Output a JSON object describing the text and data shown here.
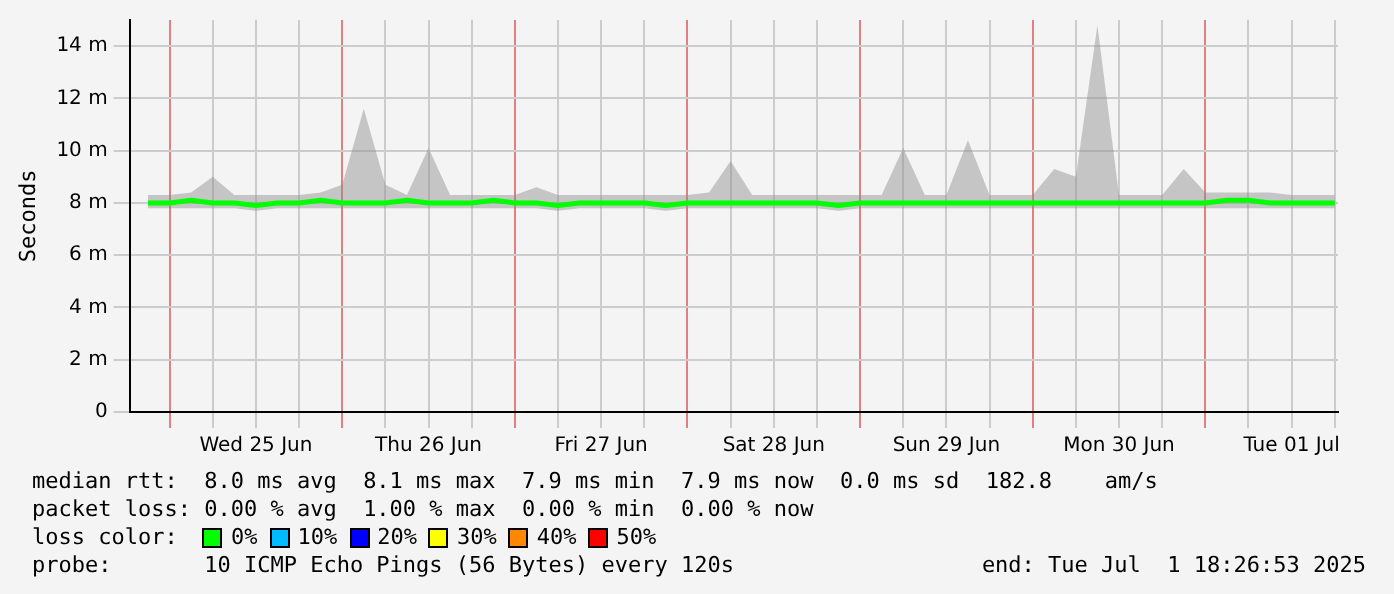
{
  "chart_data": {
    "type": "line",
    "ylabel": "Seconds",
    "x": [
      "2025-06-24T21:00",
      "2025-06-25T00:00",
      "2025-06-25T03:00",
      "2025-06-25T06:00",
      "2025-06-25T09:00",
      "2025-06-25T12:00",
      "2025-06-25T15:00",
      "2025-06-25T18:00",
      "2025-06-25T21:00",
      "2025-06-26T00:00",
      "2025-06-26T03:00",
      "2025-06-26T06:00",
      "2025-06-26T09:00",
      "2025-06-26T12:00",
      "2025-06-26T15:00",
      "2025-06-26T18:00",
      "2025-06-26T21:00",
      "2025-06-27T00:00",
      "2025-06-27T03:00",
      "2025-06-27T06:00",
      "2025-06-27T09:00",
      "2025-06-27T12:00",
      "2025-06-27T15:00",
      "2025-06-27T18:00",
      "2025-06-27T21:00",
      "2025-06-28T00:00",
      "2025-06-28T03:00",
      "2025-06-28T06:00",
      "2025-06-28T09:00",
      "2025-06-28T12:00",
      "2025-06-28T15:00",
      "2025-06-28T18:00",
      "2025-06-28T21:00",
      "2025-06-29T00:00",
      "2025-06-29T03:00",
      "2025-06-29T06:00",
      "2025-06-29T09:00",
      "2025-06-29T12:00",
      "2025-06-29T15:00",
      "2025-06-29T18:00",
      "2025-06-29T21:00",
      "2025-06-30T00:00",
      "2025-06-30T03:00",
      "2025-06-30T06:00",
      "2025-06-30T09:00",
      "2025-06-30T12:00",
      "2025-06-30T15:00",
      "2025-06-30T18:00",
      "2025-06-30T21:00",
      "2025-07-01T00:00",
      "2025-07-01T03:00",
      "2025-07-01T06:00",
      "2025-07-01T09:00",
      "2025-07-01T12:00",
      "2025-07-01T15:00",
      "2025-07-01T18:00"
    ],
    "series": [
      {
        "name": "0%",
        "color": "#00ff00",
        "values": [
          8.0,
          8.0,
          8.1,
          8.0,
          8.0,
          7.9,
          8.0,
          8.0,
          8.1,
          8.0,
          8.0,
          8.0,
          8.1,
          8.0,
          8.0,
          8.0,
          8.1,
          8.0,
          8.0,
          7.9,
          8.0,
          8.0,
          8.0,
          8.0,
          7.9,
          8.0,
          8.0,
          8.0,
          8.0,
          8.0,
          8.0,
          8.0,
          7.9,
          8.0,
          8.0,
          8.0,
          8.0,
          8.0,
          8.0,
          8.0,
          8.0,
          8.0,
          8.0,
          8.0,
          8.0,
          8.0,
          8.0,
          8.0,
          8.0,
          8.0,
          8.1,
          8.1,
          8.0,
          8.0,
          8.0,
          8.0
        ],
        "lower": [
          7.8,
          7.8,
          7.8,
          7.8,
          7.8,
          7.7,
          7.8,
          7.8,
          7.8,
          7.8,
          7.8,
          7.8,
          7.8,
          7.8,
          7.8,
          7.8,
          7.8,
          7.8,
          7.8,
          7.7,
          7.8,
          7.8,
          7.8,
          7.8,
          7.7,
          7.8,
          7.8,
          7.8,
          7.8,
          7.8,
          7.8,
          7.8,
          7.7,
          7.8,
          7.8,
          7.8,
          7.8,
          7.8,
          7.8,
          7.8,
          7.8,
          7.8,
          7.8,
          7.8,
          7.8,
          7.8,
          7.8,
          7.8,
          7.8,
          7.8,
          7.8,
          7.8,
          7.8,
          7.8,
          7.8,
          7.8
        ],
        "upper": [
          8.3,
          8.3,
          8.4,
          9.0,
          8.3,
          8.3,
          8.3,
          8.3,
          8.4,
          8.7,
          11.6,
          8.7,
          8.3,
          10.1,
          8.3,
          8.3,
          8.3,
          8.3,
          8.6,
          8.3,
          8.3,
          8.3,
          8.3,
          8.3,
          8.3,
          8.3,
          8.4,
          9.6,
          8.3,
          8.3,
          8.3,
          8.3,
          8.3,
          8.3,
          8.3,
          10.1,
          8.3,
          8.3,
          10.4,
          8.3,
          8.3,
          8.3,
          9.3,
          9.0,
          14.8,
          8.3,
          8.3,
          8.3,
          9.3,
          8.4,
          8.4,
          8.4,
          8.4,
          8.3,
          8.3,
          8.3
        ]
      },
      {
        "name": "10%",
        "color": "#00bbff",
        "values": [
          null,
          null,
          null,
          null,
          null,
          null,
          null,
          null,
          null,
          null,
          null,
          null,
          null,
          null,
          null,
          null,
          null,
          null,
          null,
          null,
          null,
          null,
          null,
          null,
          null,
          null,
          null,
          null,
          null,
          null,
          null,
          null,
          null,
          null,
          null,
          null,
          null,
          null,
          null,
          null,
          null,
          null,
          null,
          null,
          null,
          null,
          null,
          null,
          null,
          null,
          null,
          null,
          null,
          null,
          null,
          null
        ]
      },
      {
        "name": "20%",
        "color": "#0000ff",
        "values": [
          null,
          null,
          null,
          null,
          null,
          null,
          null,
          null,
          null,
          null,
          null,
          null,
          null,
          null,
          null,
          null,
          null,
          null,
          null,
          null,
          null,
          null,
          null,
          null,
          null,
          null,
          null,
          null,
          null,
          null,
          null,
          null,
          null,
          null,
          null,
          null,
          null,
          null,
          null,
          null,
          null,
          null,
          null,
          null,
          null,
          null,
          null,
          null,
          null,
          null,
          null,
          null,
          null,
          null,
          null,
          null
        ]
      },
      {
        "name": "30%",
        "color": "#ffff00",
        "values": [
          null,
          null,
          null,
          null,
          null,
          null,
          null,
          null,
          null,
          null,
          null,
          null,
          null,
          null,
          null,
          null,
          null,
          null,
          null,
          null,
          null,
          null,
          null,
          null,
          null,
          null,
          null,
          null,
          null,
          null,
          null,
          null,
          null,
          null,
          null,
          null,
          null,
          null,
          null,
          null,
          null,
          null,
          null,
          null,
          null,
          null,
          null,
          null,
          null,
          null,
          null,
          null,
          null,
          null,
          null,
          null
        ]
      },
      {
        "name": "40%",
        "color": "#ff8800",
        "values": [
          null,
          null,
          null,
          null,
          null,
          null,
          null,
          null,
          null,
          null,
          null,
          null,
          null,
          null,
          null,
          null,
          null,
          null,
          null,
          null,
          null,
          null,
          null,
          null,
          null,
          null,
          null,
          null,
          null,
          null,
          null,
          null,
          null,
          null,
          null,
          null,
          null,
          null,
          null,
          null,
          null,
          null,
          null,
          null,
          null,
          null,
          null,
          null,
          null,
          null,
          null,
          null,
          null,
          null,
          null,
          null
        ]
      },
      {
        "name": "50%",
        "color": "#ff0000",
        "values": [
          null,
          null,
          null,
          null,
          null,
          null,
          null,
          null,
          null,
          null,
          null,
          null,
          null,
          null,
          null,
          null,
          null,
          null,
          null,
          null,
          null,
          null,
          null,
          null,
          null,
          null,
          null,
          null,
          null,
          null,
          null,
          null,
          null,
          null,
          null,
          null,
          null,
          null,
          null,
          null,
          null,
          null,
          null,
          null,
          null,
          null,
          null,
          null,
          null,
          null,
          null,
          null,
          null,
          null,
          null,
          null
        ]
      }
    ],
    "xlim": [
      "2025-06-24T18:27",
      "2025-07-01T18:27"
    ],
    "xticks": [
      {
        "value": "2025-06-25T00:00",
        "label": null
      },
      {
        "value": "2025-06-25T06:00",
        "label": null
      },
      {
        "value": "2025-06-25T12:00",
        "label": "Wed 25 Jun"
      },
      {
        "value": "2025-06-25T18:00",
        "label": null
      },
      {
        "value": "2025-06-26T00:00",
        "label": null
      },
      {
        "value": "2025-06-26T06:00",
        "label": null
      },
      {
        "value": "2025-06-26T12:00",
        "label": "Thu 26 Jun"
      },
      {
        "value": "2025-06-26T18:00",
        "label": null
      },
      {
        "value": "2025-06-27T00:00",
        "label": null
      },
      {
        "value": "2025-06-27T06:00",
        "label": null
      },
      {
        "value": "2025-06-27T12:00",
        "label": "Fri 27 Jun"
      },
      {
        "value": "2025-06-27T18:00",
        "label": null
      },
      {
        "value": "2025-06-28T00:00",
        "label": null
      },
      {
        "value": "2025-06-28T06:00",
        "label": null
      },
      {
        "value": "2025-06-28T12:00",
        "label": "Sat 28 Jun"
      },
      {
        "value": "2025-06-28T18:00",
        "label": null
      },
      {
        "value": "2025-06-29T00:00",
        "label": null
      },
      {
        "value": "2025-06-29T06:00",
        "label": null
      },
      {
        "value": "2025-06-29T12:00",
        "label": "Sun 29 Jun"
      },
      {
        "value": "2025-06-29T18:00",
        "label": null
      },
      {
        "value": "2025-06-30T00:00",
        "label": null
      },
      {
        "value": "2025-06-30T06:00",
        "label": null
      },
      {
        "value": "2025-06-30T12:00",
        "label": "Mon 30 Jun"
      },
      {
        "value": "2025-06-30T18:00",
        "label": null
      },
      {
        "value": "2025-07-01T00:00",
        "label": null
      },
      {
        "value": "2025-07-01T06:00",
        "label": null
      },
      {
        "value": "2025-07-01T12:00",
        "label": "Tue 01 Jul"
      },
      {
        "value": "2025-07-01T18:00",
        "label": null
      }
    ],
    "ylim": [
      0,
      15
    ],
    "yticks": [
      {
        "value": 0,
        "label": "0"
      },
      {
        "value": 2,
        "label": "2 m"
      },
      {
        "value": 4,
        "label": "4 m"
      },
      {
        "value": 6,
        "label": "6 m"
      },
      {
        "value": 8,
        "label": "8 m"
      },
      {
        "value": 10,
        "label": "10 m"
      },
      {
        "value": 12,
        "label": "12 m"
      },
      {
        "value": 14,
        "label": "14 m"
      }
    ],
    "grid": true,
    "legend": "bottom",
    "marker": "none",
    "line_style": "solid",
    "annotations": [
      "median rtt:  8.0 ms avg  8.1 ms max  7.9 ms min  7.9 ms now  0.0 ms sd  182.8    am/s",
      "packet loss: 0.00 % avg  1.00 % max  0.00 % min  0.00 % now",
      "loss color:",
      "probe:       10 ICMP Echo Pings (56 Bytes) every 120s",
      "end: Tue Jul  1 18:26:53 2025"
    ]
  }
}
